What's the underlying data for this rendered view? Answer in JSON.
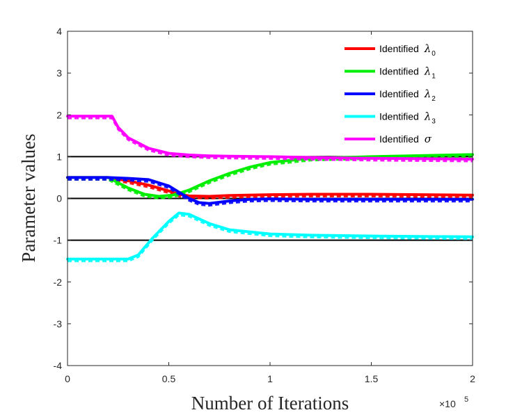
{
  "chart_data": {
    "type": "line",
    "xlabel": "Number of Iterations",
    "ylabel": "Parameter values",
    "xlim": [
      0,
      2
    ],
    "ylim": [
      -4,
      4
    ],
    "x_multiplier": "×10",
    "x_multiplier_exp": "5",
    "xticks": [
      "0",
      "0.5",
      "1",
      "1.5",
      "2"
    ],
    "yticks": [
      "-4",
      "-3",
      "-2",
      "-1",
      "0",
      "1",
      "2",
      "3",
      "4"
    ],
    "reference_lines": [
      1,
      0,
      -1
    ],
    "legend_position": "top-right",
    "series": [
      {
        "name": "Identified λ0",
        "label": "Identified ",
        "symbol": "λ",
        "sub": "0",
        "color": "#ff0000",
        "x": [
          0,
          0.2,
          0.3,
          0.4,
          0.5,
          0.55,
          0.6,
          0.7,
          0.8,
          1.0,
          1.2,
          1.5,
          2.0
        ],
        "y": [
          0.5,
          0.5,
          0.42,
          0.32,
          0.18,
          0.1,
          0.06,
          0.05,
          0.07,
          0.09,
          0.1,
          0.1,
          0.08
        ]
      },
      {
        "name": "Identified λ1",
        "label": "Identified ",
        "symbol": "λ",
        "sub": "1",
        "color": "#00ee00",
        "x": [
          0,
          0.2,
          0.3,
          0.38,
          0.45,
          0.52,
          0.6,
          0.7,
          0.8,
          0.9,
          1.0,
          1.2,
          1.5,
          2.0
        ],
        "y": [
          0.5,
          0.5,
          0.25,
          0.1,
          0.05,
          0.08,
          0.2,
          0.42,
          0.6,
          0.75,
          0.86,
          0.96,
          1.0,
          1.05
        ]
      },
      {
        "name": "Identified λ2",
        "label": "Identified ",
        "symbol": "λ",
        "sub": "2",
        "color": "#0000ff",
        "x": [
          0,
          0.2,
          0.3,
          0.4,
          0.5,
          0.55,
          0.6,
          0.65,
          0.7,
          0.8,
          0.9,
          1.0,
          1.2,
          1.5,
          2.0
        ],
        "y": [
          0.5,
          0.5,
          0.48,
          0.45,
          0.3,
          0.15,
          0.0,
          -0.1,
          -0.12,
          -0.06,
          -0.02,
          -0.01,
          -0.02,
          -0.02,
          -0.02
        ]
      },
      {
        "name": "Identified λ3",
        "label": "Identified ",
        "symbol": "λ",
        "sub": "3",
        "color": "#00ffff",
        "x": [
          0,
          0.3,
          0.35,
          0.42,
          0.5,
          0.55,
          0.6,
          0.7,
          0.8,
          1.0,
          1.2,
          1.5,
          2.0
        ],
        "y": [
          -1.45,
          -1.45,
          -1.35,
          -0.95,
          -0.55,
          -0.35,
          -0.38,
          -0.6,
          -0.75,
          -0.85,
          -0.88,
          -0.9,
          -0.92
        ]
      },
      {
        "name": "Identified σ",
        "label": "Identified ",
        "symbol": "σ",
        "sub": "",
        "color": "#ff00ff",
        "x": [
          0,
          0.22,
          0.25,
          0.3,
          0.4,
          0.5,
          0.6,
          0.7,
          0.8,
          1.0,
          1.2,
          1.5,
          2.0
        ],
        "y": [
          1.97,
          1.97,
          1.7,
          1.45,
          1.2,
          1.08,
          1.04,
          1.02,
          1.01,
          1.0,
          0.98,
          0.96,
          0.94
        ]
      }
    ]
  }
}
